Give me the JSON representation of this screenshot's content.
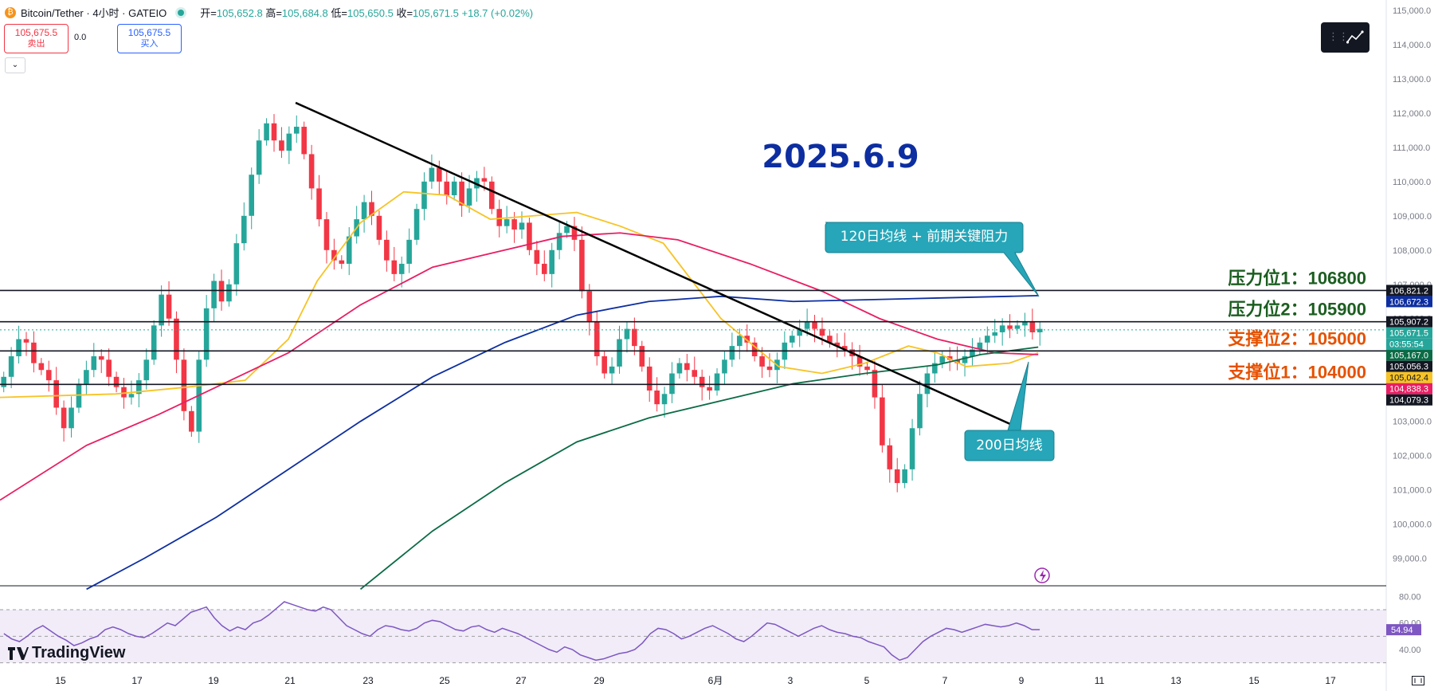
{
  "header": {
    "symbol": "Bitcoin/Tether · 4小时 · GATEIO",
    "open_label": "开=",
    "open": "105,652.8",
    "high_label": "高=",
    "high": "105,684.8",
    "low_label": "低=",
    "low": "105,650.5",
    "close_label": "收=",
    "close": "105,671.5",
    "change": "+18.7 (+0.02%)"
  },
  "trade": {
    "sell_price": "105,675.5",
    "sell_label": "卖出",
    "spread": "0.0",
    "buy_price": "105,675.5",
    "buy_label": "买入"
  },
  "brand": "TradingView",
  "colors": {
    "up": "#26a69a",
    "down": "#f23645",
    "ma_yellow": "#f7c325",
    "ma_red": "#e91e63",
    "ma_blue": "#0d2ea0",
    "ma_green": "#0b6b46",
    "rsi": "#7e57c2",
    "title": "#0d2ea0"
  },
  "chart_data": {
    "type": "candlestick",
    "title": "2025.6.9",
    "timeframe": "4小时",
    "ylim": [
      98200,
      115300
    ],
    "y_ticks": [
      99000,
      100000,
      101000,
      102000,
      103000,
      104000,
      105000,
      106000,
      107000,
      108000,
      109000,
      110000,
      111000,
      112000,
      113000,
      114000,
      115000
    ],
    "y_tick_labels": [
      "99,000.0",
      "100,000.0",
      "101,000.0",
      "102,000.0",
      "103,000.0",
      "104,000.0",
      "105,000.0",
      "106,000.0",
      "107,000.0",
      "108,000.0",
      "109,000.0",
      "110,000.0",
      "111,000.0",
      "112,000.0",
      "113,000.0",
      "114,000.0",
      "115,000.0"
    ],
    "x_tick_labels": [
      "15",
      "17",
      "19",
      "21",
      "23",
      "25",
      "27",
      "29",
      "6月",
      "3",
      "5",
      "7",
      "9",
      "11",
      "13",
      "15",
      "17"
    ],
    "horizontal_levels": [
      {
        "label": "压力位1：106800",
        "value": 106821.2,
        "color": "#1b5e20"
      },
      {
        "label": "压力位2：105900",
        "value": 105907.2,
        "color": "#1b5e20"
      },
      {
        "label": "支撑位2：105000",
        "value": 105056.3,
        "color": "#e65100"
      },
      {
        "label": "支撑位1：104000",
        "value": 104079.3,
        "color": "#e65100"
      }
    ],
    "price_badges": [
      {
        "text": "106,821.2",
        "value": 106821.2,
        "bg": "#131722",
        "fg": "#ffffff"
      },
      {
        "text": "106,672.3",
        "value": 106672.3,
        "bg": "#0d2ea0",
        "fg": "#ffffff"
      },
      {
        "text": "105,907.2",
        "value": 105907.2,
        "bg": "#131722",
        "fg": "#ffffff"
      },
      {
        "text": "105,671.5",
        "value": 105671.5,
        "bg": "#26a69a",
        "fg": "#ffffff"
      },
      {
        "text": "03:55:54",
        "value": 105490,
        "bg": "#26a69a",
        "fg": "#ffffff"
      },
      {
        "text": "105,167.0",
        "value": 105167.0,
        "bg": "#0b6b46",
        "fg": "#ffffff"
      },
      {
        "text": "105,056.3",
        "value": 105056.3,
        "bg": "#131722",
        "fg": "#ffffff"
      },
      {
        "text": "105,042.4",
        "value": 105042.4,
        "bg": "#f7c325",
        "fg": "#131722"
      },
      {
        "text": "104,838.3",
        "value": 104838.3,
        "bg": "#e91e63",
        "fg": "#ffffff"
      },
      {
        "text": "104,079.3",
        "value": 104079.3,
        "bg": "#131722",
        "fg": "#ffffff"
      }
    ],
    "annotations": [
      {
        "text": "120日均线 + 前期关键阻力",
        "points_to": "120-period moving average near 106,672"
      },
      {
        "text": "200日均线",
        "points_to": "200-period moving average near 105,167"
      }
    ],
    "trendline": {
      "from": [
        112300,
        0.2375
      ],
      "to": [
        102800,
        0.817
      ],
      "note": "descending resistance line (x as fraction of time span)"
    },
    "series_close_approx": [
      104300,
      104900,
      105400,
      105300,
      104700,
      104500,
      104200,
      103400,
      102800,
      103400,
      104100,
      104500,
      104900,
      104800,
      104300,
      104000,
      103700,
      103800,
      104200,
      104800,
      105800,
      106700,
      106000,
      104800,
      103300,
      102700,
      104800,
      106300,
      107100,
      106500,
      107000,
      108200,
      109000,
      110200,
      111200,
      111700,
      111200,
      110900,
      111400,
      111600,
      110800,
      109800,
      108900,
      108000,
      107700,
      107600,
      108400,
      108900,
      109400,
      109000,
      108300,
      107700,
      107300,
      107600,
      108300,
      109200,
      110000,
      110400,
      110000,
      109600,
      110000,
      109300,
      109800,
      110100,
      110000,
      109200,
      108700,
      108900,
      108600,
      108800,
      108000,
      107600,
      107300,
      108000,
      108500,
      108700,
      108300,
      106800,
      105900,
      104900,
      104400,
      104600,
      105400,
      105700,
      105200,
      104600,
      103900,
      103500,
      103800,
      104400,
      104700,
      104500,
      104300,
      104000,
      103900,
      104400,
      104800,
      105200,
      105500,
      105300,
      104900,
      104600,
      104500,
      104800,
      105300,
      105500,
      105700,
      105900,
      105700,
      105500,
      105300,
      105200,
      105100,
      104900,
      104600,
      104500,
      103700,
      102300,
      101600,
      101200,
      101600,
      102800,
      103800,
      104400,
      104700,
      104900,
      104800,
      104700,
      104900,
      105100,
      105300,
      105500,
      105600,
      105800,
      105700,
      105800,
      105900,
      105600,
      105700
    ],
    "ma_series_approx": {
      "ma_short_yellow": [
        [
          0.0,
          103700
        ],
        [
          0.08,
          103800
        ],
        [
          0.13,
          104000
        ],
        [
          0.17,
          104200
        ],
        [
          0.2,
          105400
        ],
        [
          0.22,
          107100
        ],
        [
          0.25,
          108800
        ],
        [
          0.28,
          109700
        ],
        [
          0.31,
          109600
        ],
        [
          0.34,
          108900
        ],
        [
          0.37,
          109000
        ],
        [
          0.4,
          109100
        ],
        [
          0.43,
          108700
        ],
        [
          0.46,
          108200
        ],
        [
          0.5,
          106000
        ],
        [
          0.54,
          104600
        ],
        [
          0.57,
          104400
        ],
        [
          0.6,
          104700
        ],
        [
          0.63,
          105200
        ],
        [
          0.65,
          105000
        ],
        [
          0.67,
          104600
        ],
        [
          0.7,
          104700
        ],
        [
          0.72,
          105000
        ]
      ],
      "ma_mid_red": [
        [
          0.0,
          100700
        ],
        [
          0.06,
          102300
        ],
        [
          0.11,
          103200
        ],
        [
          0.15,
          104000
        ],
        [
          0.2,
          105000
        ],
        [
          0.25,
          106400
        ],
        [
          0.3,
          107500
        ],
        [
          0.35,
          108000
        ],
        [
          0.39,
          108400
        ],
        [
          0.43,
          108500
        ],
        [
          0.47,
          108300
        ],
        [
          0.52,
          107600
        ],
        [
          0.57,
          106800
        ],
        [
          0.61,
          106000
        ],
        [
          0.65,
          105400
        ],
        [
          0.69,
          105000
        ],
        [
          0.72,
          104950
        ]
      ],
      "ma120_blue": [
        [
          0.06,
          98100
        ],
        [
          0.1,
          99000
        ],
        [
          0.15,
          100200
        ],
        [
          0.2,
          101600
        ],
        [
          0.25,
          103000
        ],
        [
          0.3,
          104300
        ],
        [
          0.35,
          105300
        ],
        [
          0.4,
          106100
        ],
        [
          0.45,
          106500
        ],
        [
          0.5,
          106650
        ],
        [
          0.55,
          106500
        ],
        [
          0.6,
          106550
        ],
        [
          0.65,
          106600
        ],
        [
          0.7,
          106650
        ],
        [
          0.72,
          106672
        ]
      ],
      "ma200_green": [
        [
          0.25,
          98100
        ],
        [
          0.3,
          99800
        ],
        [
          0.35,
          101200
        ],
        [
          0.4,
          102400
        ],
        [
          0.45,
          103100
        ],
        [
          0.5,
          103600
        ],
        [
          0.55,
          104100
        ],
        [
          0.6,
          104400
        ],
        [
          0.65,
          104650
        ],
        [
          0.68,
          104950
        ],
        [
          0.72,
          105167
        ]
      ]
    },
    "rsi": {
      "ylim": [
        28,
        82
      ],
      "y_tick_labels": [
        "40.00",
        "60.00",
        "80.00"
      ],
      "y_ticks": [
        40,
        60,
        80
      ],
      "band": [
        30,
        70
      ],
      "current": "54.94",
      "values_approx": [
        52,
        48,
        46,
        50,
        55,
        58,
        54,
        50,
        47,
        43,
        45,
        48,
        50,
        55,
        57,
        55,
        52,
        50,
        49,
        52,
        56,
        60,
        58,
        63,
        68,
        70,
        72,
        64,
        58,
        54,
        57,
        55,
        60,
        62,
        66,
        71,
        76,
        74,
        72,
        70,
        69,
        72,
        70,
        64,
        58,
        55,
        52,
        50,
        55,
        58,
        57,
        55,
        54,
        56,
        60,
        62,
        61,
        58,
        55,
        54,
        57,
        58,
        55,
        53,
        56,
        54,
        52,
        49,
        46,
        43,
        40,
        38,
        42,
        40,
        36,
        34,
        32,
        33,
        35,
        37,
        38,
        40,
        45,
        52,
        56,
        55,
        52,
        48,
        50,
        53,
        56,
        58,
        55,
        52,
        48,
        46,
        50,
        55,
        60,
        59,
        56,
        53,
        50,
        53,
        56,
        58,
        55,
        53,
        52,
        50,
        49,
        46,
        44,
        42,
        36,
        32,
        34,
        40,
        46,
        50,
        53,
        56,
        55,
        53,
        55,
        57,
        59,
        58,
        57,
        58,
        60,
        58,
        55,
        55
      ]
    }
  }
}
